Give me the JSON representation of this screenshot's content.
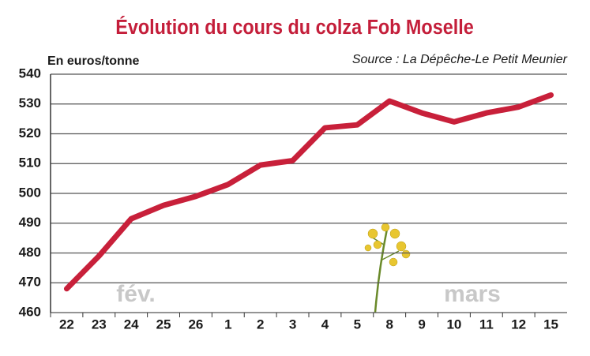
{
  "chart_data": {
    "type": "line",
    "title": "Évolution du cours du colza Fob Moselle",
    "y_label": "En euros/tonne",
    "source": "Source : La Dépêche-Le Petit Meunier",
    "annotations": [
      "fév.",
      "mars"
    ],
    "categories": [
      "22",
      "23",
      "24",
      "25",
      "26",
      "1",
      "2",
      "3",
      "4",
      "5",
      "8",
      "9",
      "10",
      "11",
      "12",
      "15"
    ],
    "values": [
      468,
      479,
      491.5,
      496,
      499,
      503,
      509.5,
      511,
      522,
      523,
      531,
      527,
      524,
      527,
      529,
      533
    ],
    "color": "#c8203a",
    "ylim": [
      460,
      540
    ],
    "yticks": [
      460,
      470,
      480,
      490,
      500,
      510,
      520,
      530,
      540
    ],
    "grid": true
  }
}
